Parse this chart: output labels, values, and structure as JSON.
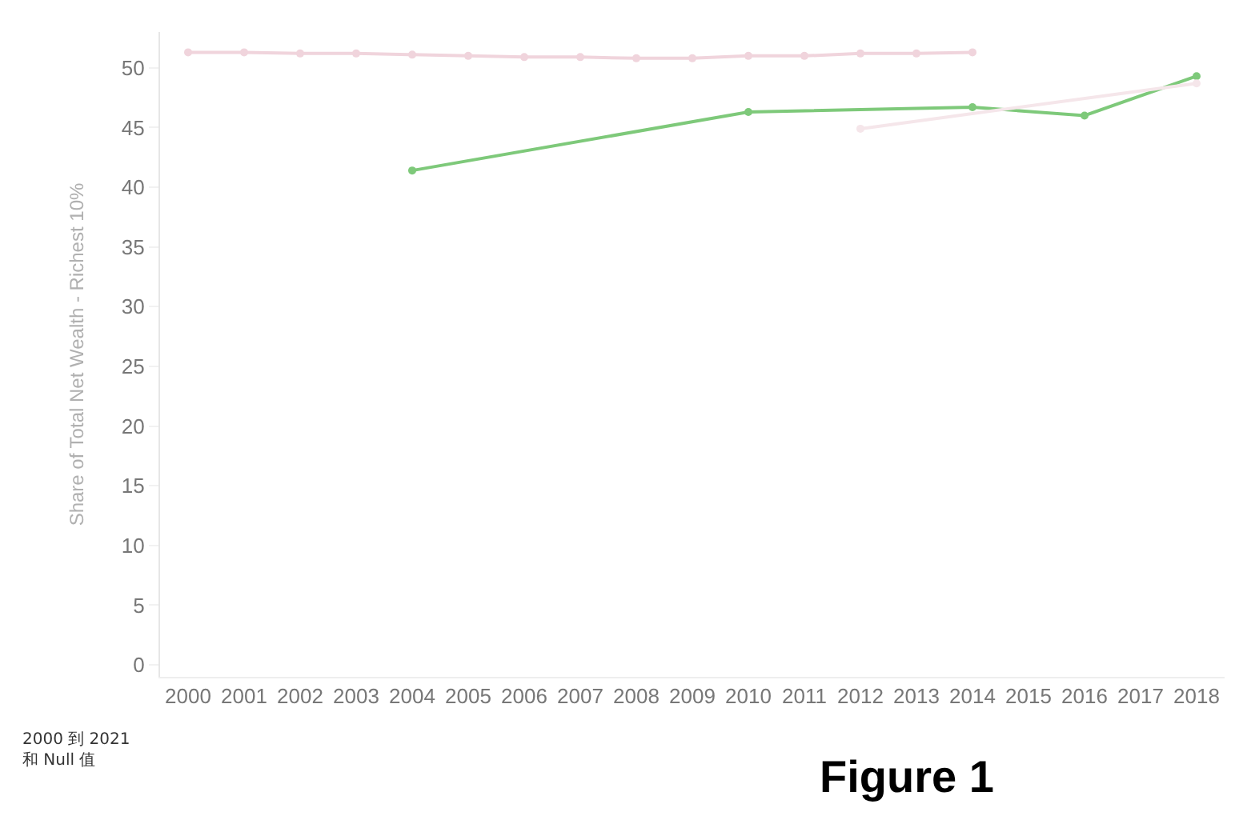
{
  "chart_data": {
    "type": "line",
    "ylabel": "Share of Total Net Wealth - Richest 10%",
    "categories": [
      "2000",
      "2001",
      "2002",
      "2003",
      "2004",
      "2005",
      "2006",
      "2007",
      "2008",
      "2009",
      "2010",
      "2011",
      "2012",
      "2013",
      "2014",
      "2015",
      "2016",
      "2017",
      "2018"
    ],
    "series": [
      {
        "color": "#f0d4dc",
        "values": [
          51.3,
          51.3,
          51.2,
          51.2,
          51.1,
          51.0,
          50.9,
          50.9,
          50.8,
          50.8,
          51.0,
          51.0,
          51.2,
          51.2,
          51.3,
          null,
          null,
          null,
          null
        ]
      },
      {
        "color": "#7ec97a",
        "values": [
          null,
          null,
          null,
          null,
          41.4,
          null,
          null,
          null,
          null,
          null,
          46.3,
          null,
          null,
          null,
          46.7,
          null,
          46.0,
          null,
          49.3
        ]
      },
      {
        "color": "#f5e6ea",
        "values": [
          null,
          null,
          null,
          null,
          null,
          null,
          null,
          null,
          null,
          null,
          null,
          null,
          44.9,
          null,
          null,
          null,
          null,
          null,
          48.7
        ]
      }
    ],
    "ylim": [
      -1,
      53
    ],
    "yticks": [
      0,
      5,
      10,
      15,
      20,
      25,
      30,
      35,
      40,
      45,
      50
    ],
    "marker": "circle",
    "line_style": "solid",
    "annotations": [
      "2000 到 2021\n和 Null 值",
      "Figure 1"
    ]
  }
}
